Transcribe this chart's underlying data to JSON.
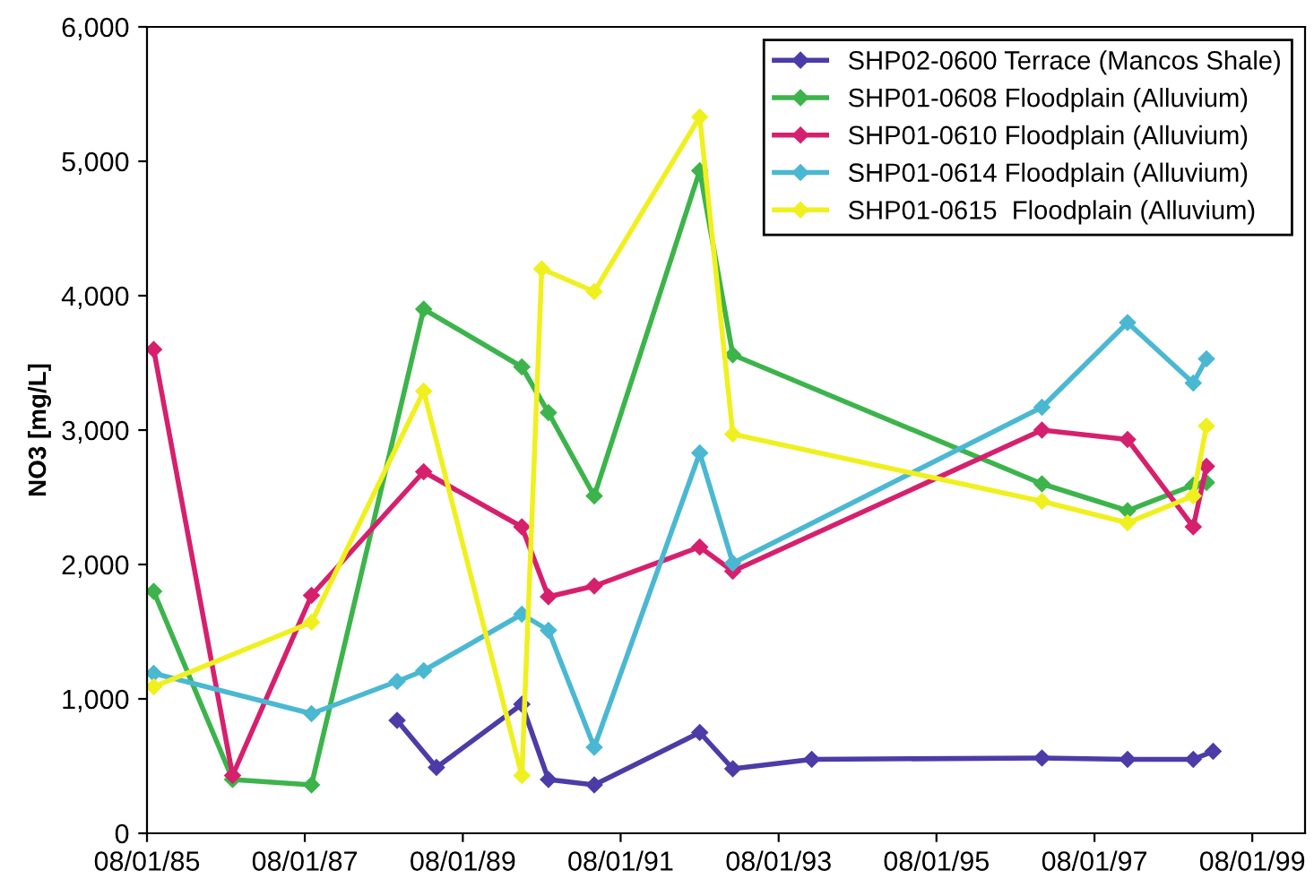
{
  "chart_data": {
    "type": "line",
    "ylabel": "NO3 [mg/L]",
    "marker": "diamond",
    "legend": "top right",
    "grid": false,
    "xlim": [
      "1985-08-01",
      "2000-04-01"
    ],
    "xticks": [
      {
        "value": "1985-08-01",
        "label": "08/01/85"
      },
      {
        "value": "1987-08-01",
        "label": "08/01/87"
      },
      {
        "value": "1989-08-01",
        "label": "08/01/89"
      },
      {
        "value": "1991-08-01",
        "label": "08/01/91"
      },
      {
        "value": "1993-08-01",
        "label": "08/01/93"
      },
      {
        "value": "1995-08-01",
        "label": "08/01/95"
      },
      {
        "value": "1997-08-01",
        "label": "08/01/97"
      },
      {
        "value": "1999-08-01",
        "label": "08/01/99"
      }
    ],
    "ylim": [
      0,
      6000
    ],
    "yticks": [
      0,
      {
        "value": 1000,
        "label": "1,000"
      },
      {
        "value": 2000,
        "label": "2,000"
      },
      {
        "value": 3000,
        "label": "3,000"
      },
      {
        "value": 4000,
        "label": "4,000"
      },
      {
        "value": 5000,
        "label": "5,000"
      },
      {
        "value": 6000,
        "label": "6,000"
      }
    ],
    "series": [
      {
        "name": "SHP02-0600 Terrace (Mancos Shale)",
        "color": "#4b3ca8",
        "x": [
          "1988-10",
          "1989-04",
          "1990-05",
          "1990-09",
          "1991-04",
          "1992-08",
          "1993-01",
          "1994-01",
          "1996-12",
          "1998-01",
          "1998-11",
          "1999-02"
        ],
        "values": [
          840,
          490,
          960,
          400,
          360,
          750,
          480,
          550,
          560,
          550,
          550,
          610
        ]
      },
      {
        "name": "SHP01-0608 Floodplain (Alluvium)",
        "color": "#3cb44b",
        "x": [
          "1985-09",
          "1986-09",
          "1987-09",
          "1989-02",
          "1990-05",
          "1990-09",
          "1991-04",
          "1992-08",
          "1993-01",
          "1996-12",
          "1998-01",
          "1998-11",
          "1999-01"
        ],
        "values": [
          1800,
          400,
          360,
          3900,
          3470,
          3130,
          2510,
          4930,
          3560,
          2600,
          2400,
          2590,
          2610
        ]
      },
      {
        "name": "SHP01-0610 Floodplain (Alluvium)",
        "color": "#d6206e",
        "x": [
          "1985-09",
          "1986-09",
          "1987-09",
          "1989-02",
          "1990-05",
          "1990-09",
          "1991-04",
          "1992-08",
          "1993-01",
          "1996-12",
          "1998-01",
          "1998-11",
          "1999-01"
        ],
        "values": [
          3600,
          430,
          1770,
          2690,
          2280,
          1760,
          1840,
          2130,
          1950,
          3000,
          2930,
          2280,
          2730
        ]
      },
      {
        "name": "SHP01-0614 Floodplain (Alluvium)",
        "color": "#4bb8d2",
        "x": [
          "1985-09",
          "1987-09",
          "1988-10",
          "1989-02",
          "1990-05",
          "1990-09",
          "1991-04",
          "1992-08",
          "1993-01",
          "1996-12",
          "1998-01",
          "1998-11",
          "1999-01"
        ],
        "values": [
          1190,
          890,
          1130,
          1210,
          1630,
          1510,
          640,
          2830,
          2010,
          3170,
          3800,
          3350,
          3530
        ]
      },
      {
        "name": "SHP01-0615  Floodplain (Alluvium)",
        "color": "#f0f020",
        "x": [
          "1985-09",
          "1987-09",
          "1989-02",
          "1990-05",
          "1990-08",
          "1991-04",
          "1992-08",
          "1993-01",
          "1996-12",
          "1998-01",
          "1998-11",
          "1999-01"
        ],
        "values": [
          1090,
          1570,
          3290,
          430,
          4200,
          4030,
          5330,
          2970,
          2470,
          2310,
          2510,
          3030
        ]
      }
    ]
  }
}
